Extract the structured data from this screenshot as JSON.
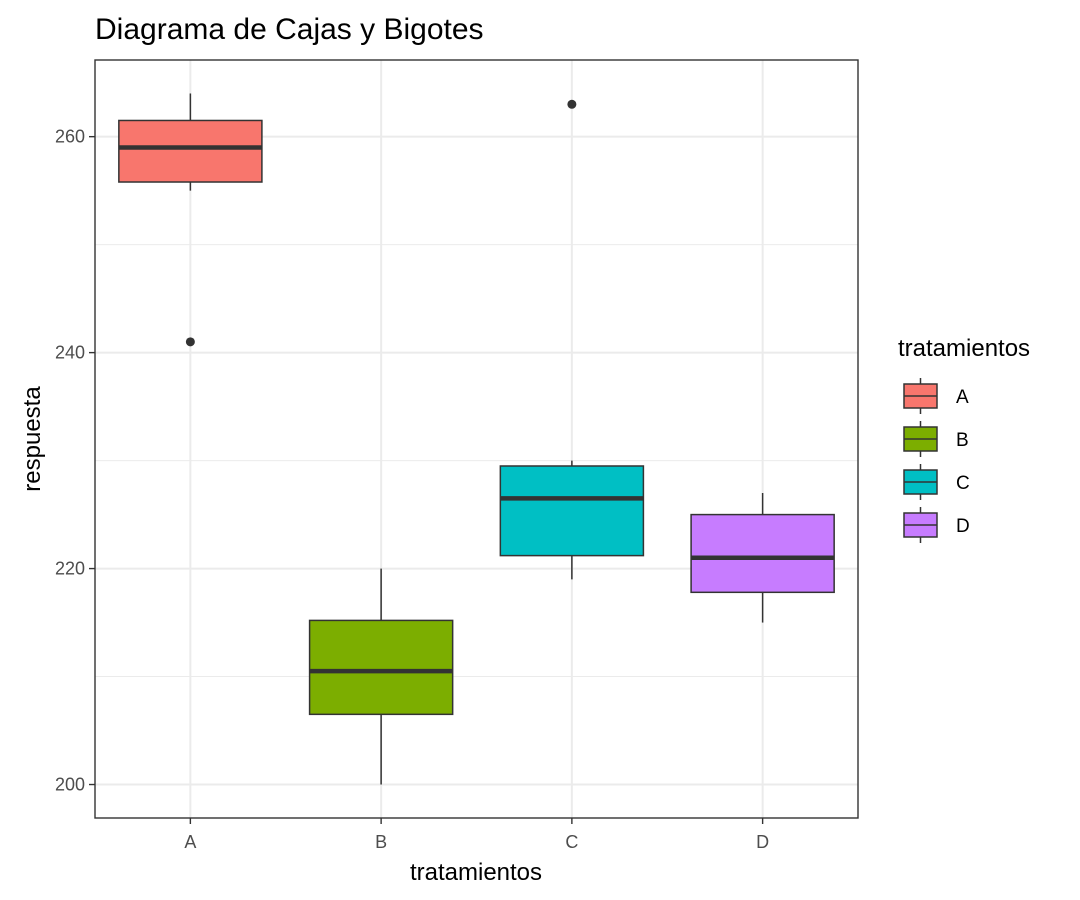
{
  "chart_data": {
    "type": "boxplot",
    "title": "Diagrama de Cajas y Bigotes",
    "xlabel": "tratamientos",
    "ylabel": "respuesta",
    "categories": [
      "A",
      "B",
      "C",
      "D"
    ],
    "ylim": [
      196.9,
      267.1
    ],
    "y_ticks": [
      200,
      220,
      240,
      260
    ],
    "y_tick_labels": [
      "200",
      "220",
      "240",
      "260"
    ],
    "grid": true,
    "legend": {
      "title": "tratamientos",
      "placement": "right",
      "entries": [
        "A",
        "B",
        "C",
        "D"
      ]
    },
    "colors": [
      "#F8766D",
      "#7CAE00",
      "#00BFC4",
      "#C77CFF"
    ],
    "boxes": [
      {
        "category": "A",
        "whisker_low": 255,
        "q1": 255.8,
        "median": 259,
        "q3": 261.5,
        "whisker_high": 264,
        "outliers": [
          241
        ]
      },
      {
        "category": "B",
        "whisker_low": 200,
        "q1": 206.5,
        "median": 210.5,
        "q3": 215.2,
        "whisker_high": 220,
        "outliers": []
      },
      {
        "category": "C",
        "whisker_low": 219,
        "q1": 221.2,
        "median": 226.5,
        "q3": 229.5,
        "whisker_high": 230,
        "outliers": [
          263
        ]
      },
      {
        "category": "D",
        "whisker_low": 215,
        "q1": 217.8,
        "median": 221,
        "q3": 225,
        "whisker_high": 227,
        "outliers": []
      }
    ]
  }
}
